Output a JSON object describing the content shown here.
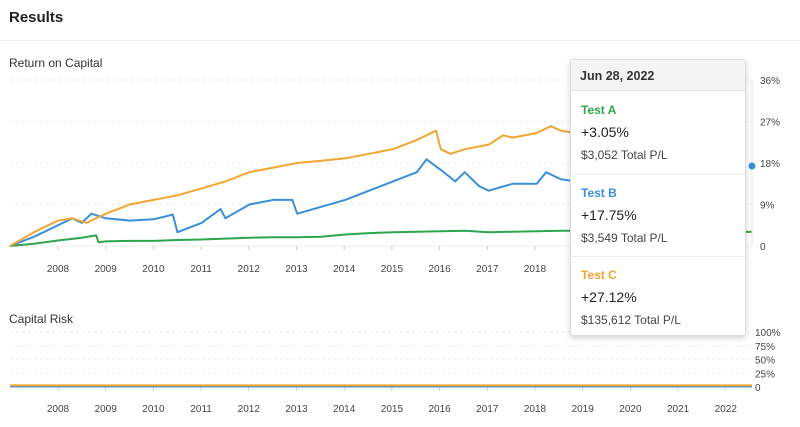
{
  "header": {
    "title": "Results"
  },
  "colors": {
    "test_a": "#2ea54e",
    "test_b": "#3a8fd9",
    "test_c": "#f2a531"
  },
  "tooltip": {
    "date": "Jun 28, 2022",
    "items": [
      {
        "name": "Test A",
        "pct": "+3.05%",
        "pl": "$3,052 Total P/L",
        "color": "#2ea54e"
      },
      {
        "name": "Test B",
        "pct": "+17.75%",
        "pl": "$3,549 Total P/L",
        "color": "#3a8fd9"
      },
      {
        "name": "Test C",
        "pct": "+27.12%",
        "pl": "$135,612 Total P/L",
        "color": "#f2a531"
      }
    ]
  },
  "chart_data": [
    {
      "type": "line",
      "title": "Return on Capital",
      "xlabel": "",
      "ylabel": "",
      "x_ticks": [
        "2008",
        "2009",
        "2010",
        "2011",
        "2012",
        "2013",
        "2014",
        "2015",
        "2016",
        "2017",
        "2018"
      ],
      "y_ticks": [
        "0",
        "9%",
        "18%",
        "27%",
        "36%"
      ],
      "xlim": [
        2007.0,
        2022.5
      ],
      "ylim": [
        0,
        36
      ],
      "grid": true,
      "series": [
        {
          "name": "Test A",
          "color": "#2ea54e",
          "x": [
            2007.0,
            2007.5,
            2008.0,
            2008.5,
            2008.8,
            2008.85,
            2009.0,
            2009.5,
            2010.0,
            2010.5,
            2011.0,
            2011.5,
            2012.0,
            2012.5,
            2013.0,
            2013.5,
            2014.0,
            2014.5,
            2015.0,
            2015.5,
            2016.0,
            2016.5,
            2017.0,
            2017.5,
            2018.0,
            2018.5,
            2019.0,
            2020.0,
            2021.0,
            2022.0,
            2022.5
          ],
          "y": [
            0,
            0.5,
            1.2,
            1.8,
            2.3,
            0.8,
            1.0,
            1.1,
            1.1,
            1.3,
            1.4,
            1.6,
            1.8,
            1.9,
            1.9,
            2.0,
            2.5,
            2.8,
            3.0,
            3.1,
            3.2,
            3.3,
            3.0,
            3.1,
            3.2,
            3.3,
            3.3,
            3.3,
            3.2,
            3.1,
            3.05
          ]
        },
        {
          "name": "Test B",
          "color": "#3a8fd9",
          "x": [
            2007.0,
            2007.5,
            2008.0,
            2008.3,
            2008.5,
            2008.7,
            2009.0,
            2009.5,
            2010.0,
            2010.4,
            2010.5,
            2011.0,
            2011.4,
            2011.5,
            2012.0,
            2012.5,
            2012.9,
            2013.0,
            2013.5,
            2014.0,
            2014.5,
            2015.0,
            2015.5,
            2015.7,
            2016.0,
            2016.3,
            2016.5,
            2016.8,
            2017.0,
            2017.5,
            2018.0,
            2018.2,
            2018.5,
            2018.8
          ],
          "y": [
            0,
            2.0,
            4.5,
            6.0,
            5.0,
            7.0,
            6.0,
            5.5,
            5.8,
            6.8,
            3.0,
            5.0,
            8.0,
            6.0,
            9.0,
            10.0,
            10.0,
            7.0,
            8.5,
            10.0,
            12.0,
            14.0,
            16.0,
            18.8,
            16.5,
            14.0,
            16.0,
            13.0,
            12.0,
            13.5,
            13.5,
            16.0,
            14.5,
            14.0
          ]
        },
        {
          "name": "Test C",
          "color": "#f2a531",
          "x": [
            2007.0,
            2007.5,
            2008.0,
            2008.3,
            2008.6,
            2009.0,
            2009.5,
            2010.0,
            2010.5,
            2011.0,
            2011.5,
            2012.0,
            2012.5,
            2013.0,
            2013.5,
            2014.0,
            2014.5,
            2015.0,
            2015.5,
            2015.9,
            2016.0,
            2016.2,
            2016.5,
            2017.0,
            2017.3,
            2017.5,
            2018.0,
            2018.3,
            2018.5,
            2018.8
          ],
          "y": [
            0,
            3.0,
            5.5,
            6.0,
            5.0,
            7.0,
            9.0,
            10.0,
            11.0,
            12.5,
            14.0,
            16.0,
            17.0,
            18.0,
            18.5,
            19.0,
            20.0,
            21.0,
            23.0,
            25.0,
            21.0,
            20.0,
            21.0,
            22.0,
            24.0,
            23.5,
            24.5,
            26.0,
            25.0,
            24.5
          ]
        }
      ]
    },
    {
      "type": "line",
      "title": "Capital Risk",
      "xlabel": "",
      "ylabel": "",
      "x_ticks": [
        "2008",
        "2009",
        "2010",
        "2011",
        "2012",
        "2013",
        "2014",
        "2015",
        "2016",
        "2017",
        "2018",
        "2019",
        "2020",
        "2021",
        "2022"
      ],
      "y_ticks": [
        "0",
        "25%",
        "50%",
        "75%",
        "100%"
      ],
      "xlim": [
        2007.0,
        2022.5
      ],
      "ylim": [
        0,
        100
      ],
      "grid": true,
      "series": [
        {
          "name": "Test A",
          "color": "#2ea54e",
          "x": [
            2007.0,
            2022.5
          ],
          "y": [
            1,
            1
          ]
        },
        {
          "name": "Test B",
          "color": "#3a8fd9",
          "x": [
            2007.0,
            2022.5
          ],
          "y": [
            1,
            1
          ]
        },
        {
          "name": "Test C",
          "color": "#f2a531",
          "x": [
            2007.0,
            2022.5
          ],
          "y": [
            3,
            3
          ]
        }
      ]
    }
  ]
}
